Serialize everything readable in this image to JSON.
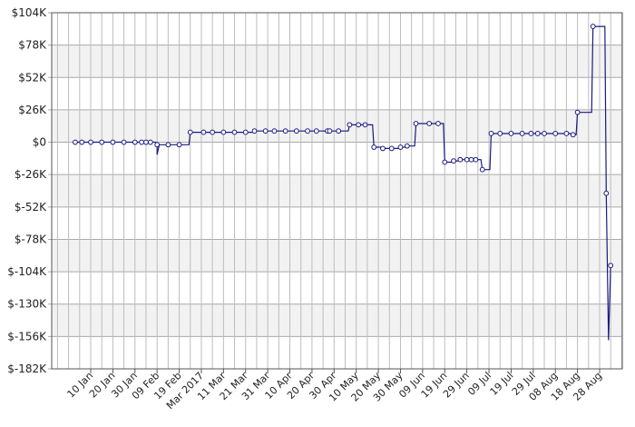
{
  "chart_data": {
    "type": "line",
    "title": "",
    "xlabel": "",
    "ylabel": "",
    "ylim": [
      -182000,
      104000
    ],
    "grid": true,
    "legend": "none",
    "line_color": "#1a1a80",
    "band_color": "#f2f2f2",
    "y_ticks": [
      {
        "value": 104000,
        "label": "$104K"
      },
      {
        "value": 78000,
        "label": "$78K"
      },
      {
        "value": 52000,
        "label": "$52K"
      },
      {
        "value": 26000,
        "label": "$26K"
      },
      {
        "value": 0,
        "label": "$0"
      },
      {
        "value": -26000,
        "label": "$-26K"
      },
      {
        "value": -52000,
        "label": "$-52K"
      },
      {
        "value": -78000,
        "label": "$-78K"
      },
      {
        "value": -104000,
        "label": "$-104K"
      },
      {
        "value": -130000,
        "label": "$-130K"
      },
      {
        "value": -156000,
        "label": "$-156K"
      },
      {
        "value": -182000,
        "label": "$-182K"
      }
    ],
    "x_ticks": [
      "10 Jan",
      "20 Jan",
      "30 Jan",
      "09 Feb",
      "19 Feb",
      "Mar 2017",
      "11 Mar",
      "21 Mar",
      "31 Mar",
      "10 Apr",
      "20 Apr",
      "30 Apr",
      "10 May",
      "20 May",
      "30 May",
      "09 Jun",
      "19 Jun",
      "29 Jun",
      "09 Jul",
      "19 Jul",
      "29 Jul",
      "08 Aug",
      "18 Aug",
      "28 Aug"
    ],
    "x_first": "2017-01-10",
    "x_last": "2017-08-28",
    "x_end": "2017-09-01",
    "x": [
      "2017-01-03",
      "2017-01-06",
      "2017-01-10",
      "2017-01-15",
      "2017-01-20",
      "2017-01-25",
      "2017-01-30",
      "2017-02-02",
      "2017-02-04",
      "2017-02-06",
      "2017-02-09",
      "2017-02-14",
      "2017-02-19",
      "2017-02-24",
      "2017-03-02",
      "2017-03-06",
      "2017-03-11",
      "2017-03-16",
      "2017-03-21",
      "2017-03-25",
      "2017-03-30",
      "2017-04-03",
      "2017-04-08",
      "2017-04-13",
      "2017-04-18",
      "2017-04-22",
      "2017-04-27",
      "2017-04-28",
      "2017-05-02",
      "2017-05-07",
      "2017-05-11",
      "2017-05-14",
      "2017-05-18",
      "2017-05-22",
      "2017-05-26",
      "2017-05-30",
      "2017-06-02",
      "2017-06-06",
      "2017-06-12",
      "2017-06-16",
      "2017-06-19",
      "2017-06-23",
      "2017-06-26",
      "2017-06-29",
      "2017-07-01",
      "2017-07-03",
      "2017-07-06",
      "2017-07-10",
      "2017-07-14",
      "2017-07-19",
      "2017-07-24",
      "2017-07-28",
      "2017-07-31",
      "2017-08-03",
      "2017-08-08",
      "2017-08-13",
      "2017-08-16",
      "2017-08-18",
      "2017-08-25",
      "2017-08-31",
      "2017-09-02"
    ],
    "values": [
      0,
      0,
      0,
      0,
      0,
      0,
      0,
      0,
      0,
      0,
      -2000,
      -2000,
      -2000,
      8000,
      8000,
      8000,
      8000,
      8000,
      8000,
      9000,
      9000,
      9000,
      9000,
      9000,
      9000,
      9000,
      9000,
      9000,
      9000,
      14000,
      14000,
      14000,
      -4000,
      -5000,
      -5000,
      -4000,
      -3000,
      15000,
      15000,
      15000,
      -16000,
      -15000,
      -14000,
      -14000,
      -14000,
      -14000,
      -22000,
      7000,
      7000,
      7000,
      7000,
      7000,
      7000,
      7000,
      7000,
      7000,
      6000,
      24000,
      93000,
      -41000,
      -99000
    ],
    "segments": [
      [
        "2017-02-09",
        "2017-02-10",
        -10000,
        -2000
      ],
      [
        "2017-08-31",
        "2017-09-01",
        -41000,
        -159000
      ],
      [
        "2017-09-01",
        "2017-09-02",
        -159000,
        -99000
      ]
    ]
  }
}
